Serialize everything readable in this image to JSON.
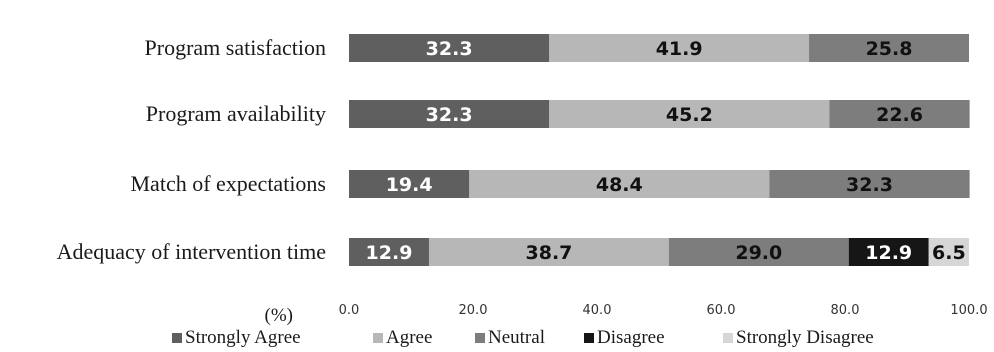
{
  "chart_data": {
    "type": "bar",
    "orientation": "horizontal",
    "stacked": true,
    "categories": [
      "Program satisfaction",
      "Program availability",
      "Match of expectations",
      "Adequacy of intervention time"
    ],
    "series": [
      {
        "name": "Strongly Agree",
        "color": "#5f5f5f",
        "label_color": "#ffffff",
        "values": [
          32.3,
          32.3,
          19.4,
          12.9
        ]
      },
      {
        "name": "Agree",
        "color": "#b7b7b7",
        "label_color": "#111111",
        "values": [
          41.9,
          45.2,
          48.4,
          38.7
        ]
      },
      {
        "name": "Neutral",
        "color": "#7d7d7d",
        "label_color": "#111111",
        "values": [
          25.8,
          22.6,
          32.3,
          29.0
        ]
      },
      {
        "name": "Disagree",
        "color": "#161616",
        "label_color": "#ffffff",
        "values": [
          0,
          0,
          0,
          12.9
        ]
      },
      {
        "name": "Strongly Disagree",
        "color": "#d6d6d6",
        "label_color": "#111111",
        "values": [
          0,
          0,
          0,
          6.5
        ]
      }
    ],
    "x_ticks": [
      "0.0",
      "20.0",
      "40.0",
      "60.0",
      "80.0",
      "100.0"
    ],
    "xlim": [
      0,
      100
    ],
    "unit_label": "(%)",
    "legend_position": "bottom",
    "grid": false
  }
}
